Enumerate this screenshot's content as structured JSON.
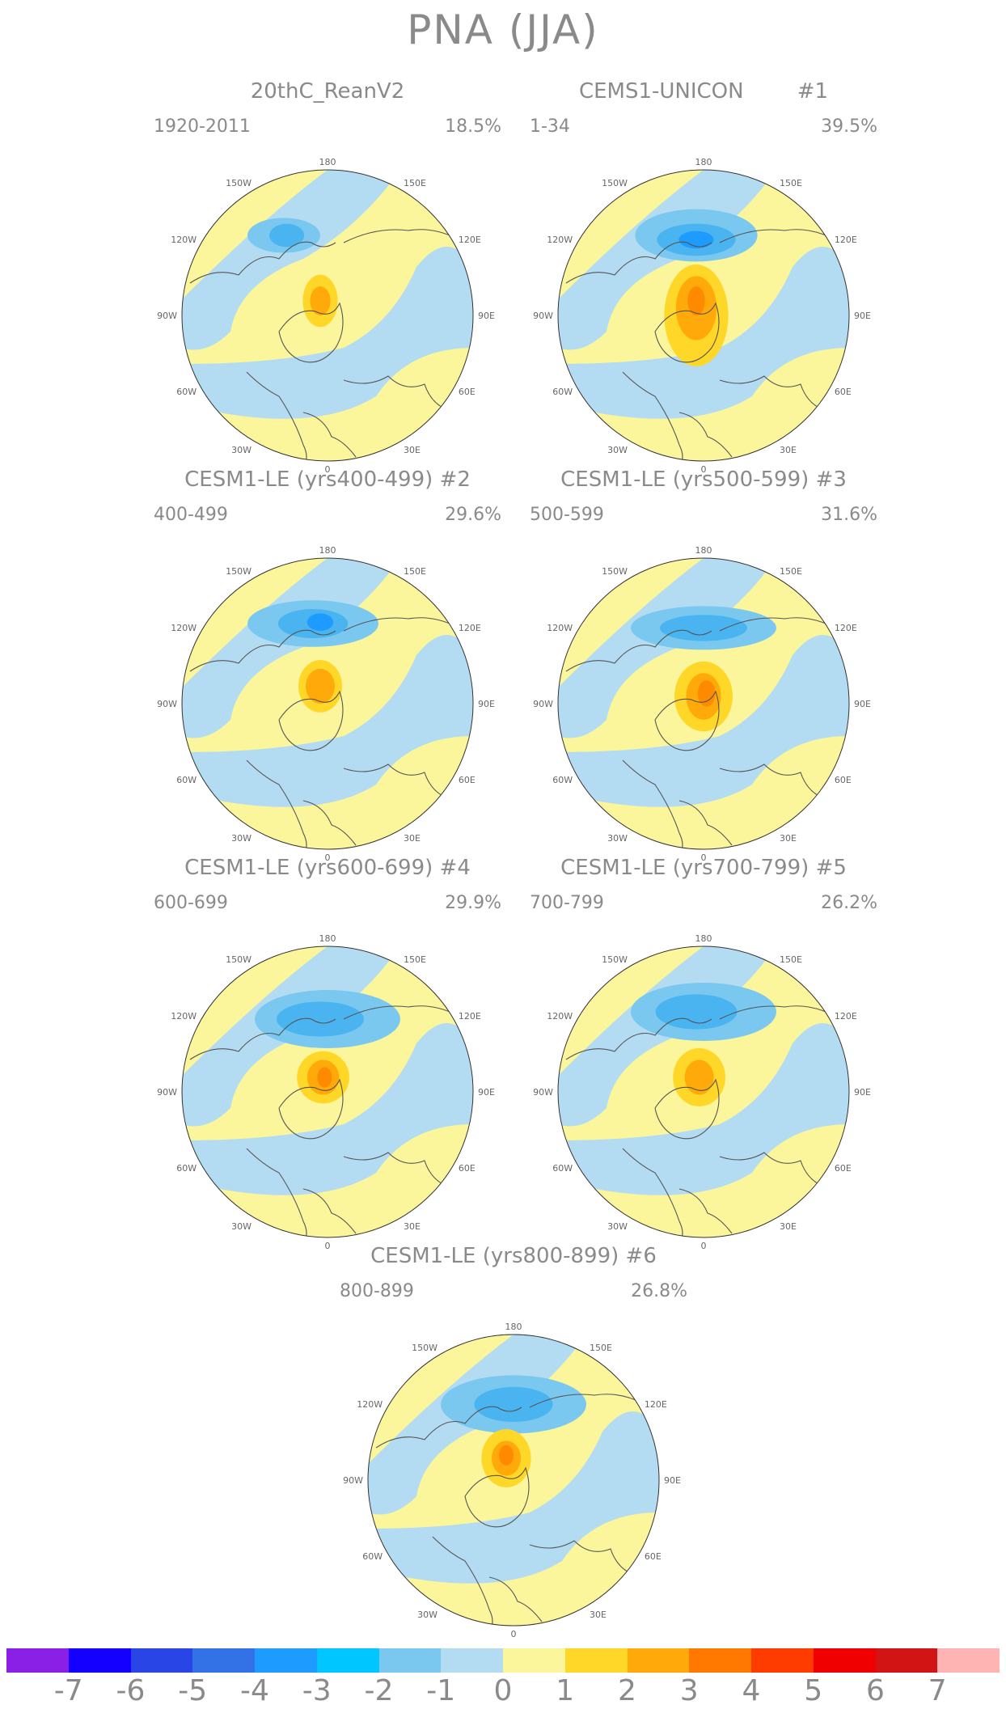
{
  "title": "PNA (JJA)",
  "panels": [
    {
      "title": "20thC_ReanV2",
      "period": "1920-2011",
      "percent": "18.5%"
    },
    {
      "title": "CEMS1-UNICON        #1",
      "period": "1-34",
      "percent": "39.5%"
    },
    {
      "title": "CESM1-LE (yrs400-499) #2",
      "period": "400-499",
      "percent": "29.6%"
    },
    {
      "title": "CESM1-LE (yrs500-599) #3",
      "period": "500-599",
      "percent": "31.6%"
    },
    {
      "title": "CESM1-LE (yrs600-699) #4",
      "period": "600-699",
      "percent": "29.9%"
    },
    {
      "title": "CESM1-LE (yrs700-799) #5",
      "period": "700-799",
      "percent": "26.2%"
    },
    {
      "title": "CESM1-LE (yrs800-899) #6",
      "period": "800-899",
      "percent": "26.8%"
    }
  ],
  "longitude_labels": {
    "top": "180",
    "bottom": "0",
    "left": "90W",
    "right": "90E",
    "upper_left": "150W",
    "upper_right": "150E",
    "mid_upper_left": "120W",
    "mid_upper_right": "120E",
    "mid_lower_left": "60W",
    "mid_lower_right": "60E",
    "lower_left": "30W",
    "lower_right": "30E"
  },
  "colorbar": {
    "labels": [
      "-7",
      "-6",
      "-5",
      "-4",
      "-3",
      "-2",
      "-1",
      "0",
      "1",
      "2",
      "3",
      "4",
      "5",
      "6",
      "7"
    ],
    "colors": [
      "#8a1fe6",
      "#1400ff",
      "#2a45e6",
      "#3272e6",
      "#1e9bff",
      "#00c6ff",
      "#7ac8f0",
      "#b3dcf2",
      "#fbf59c",
      "#ffd728",
      "#ffaa0a",
      "#ff7800",
      "#ff3c00",
      "#f00000",
      "#d21414",
      "#ffb4b4"
    ]
  },
  "colors": {
    "neg1": "#b3dcf2",
    "neg2": "#7ac8f0",
    "neg3": "#4ab4f0",
    "neg4": "#1e9bff",
    "pos1": "#fbf59c",
    "pos2": "#ffd728",
    "pos3": "#ffaa0a",
    "coast": "#555555"
  }
}
